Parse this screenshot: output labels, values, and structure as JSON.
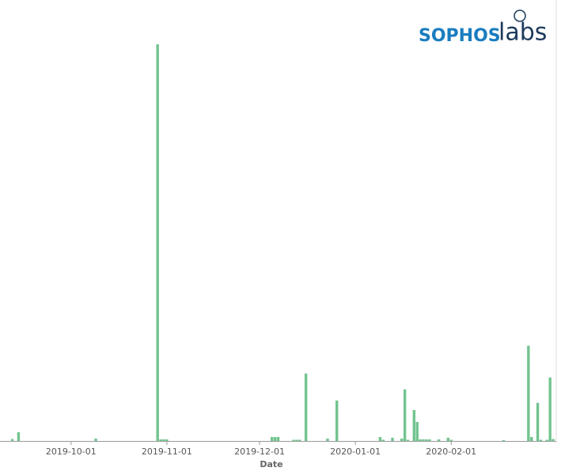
{
  "chart_data": {
    "type": "bar",
    "xlabel": "Date",
    "x": [
      "2019-09-12",
      "2019-09-14",
      "2019-10-09",
      "2019-10-29",
      "2019-10-30",
      "2019-10-31",
      "2019-11-01",
      "2019-12-05",
      "2019-12-06",
      "2019-12-07",
      "2019-12-12",
      "2019-12-13",
      "2019-12-14",
      "2019-12-16",
      "2019-12-23",
      "2019-12-26",
      "2020-01-09",
      "2020-01-10",
      "2020-01-13",
      "2020-01-16",
      "2020-01-17",
      "2020-01-18",
      "2020-01-20",
      "2020-01-21",
      "2020-01-22",
      "2020-01-23",
      "2020-01-24",
      "2020-01-25",
      "2020-01-28",
      "2020-01-31",
      "2020-02-01",
      "2020-02-18",
      "2020-02-26",
      "2020-02-27",
      "2020-02-29",
      "2020-03-01",
      "2020-03-03",
      "2020-03-04",
      "2020-03-05"
    ],
    "values": [
      0.5,
      2.2,
      0.6,
      100,
      0.4,
      0.4,
      0.4,
      1,
      1,
      1,
      0.3,
      0.3,
      0.3,
      17,
      0.6,
      10.2,
      1,
      0.3,
      0.8,
      0.6,
      13,
      0.3,
      7.8,
      4.8,
      0.4,
      0.4,
      0.4,
      0.4,
      0.4,
      0.8,
      0.3,
      0.2,
      24,
      1,
      9.6,
      0.3,
      0.3,
      16,
      0.5
    ],
    "color": "#72c48f",
    "xlim": [
      "2019-09-08",
      "2020-03-06"
    ],
    "xticks": [
      "2019-10-01",
      "2019-11-01",
      "2019-12-01",
      "2020-01-01",
      "2020-02-01"
    ],
    "ylim": [
      0,
      100
    ]
  },
  "logo": {
    "brand": "SOPHOS",
    "suffix": "labs"
  }
}
